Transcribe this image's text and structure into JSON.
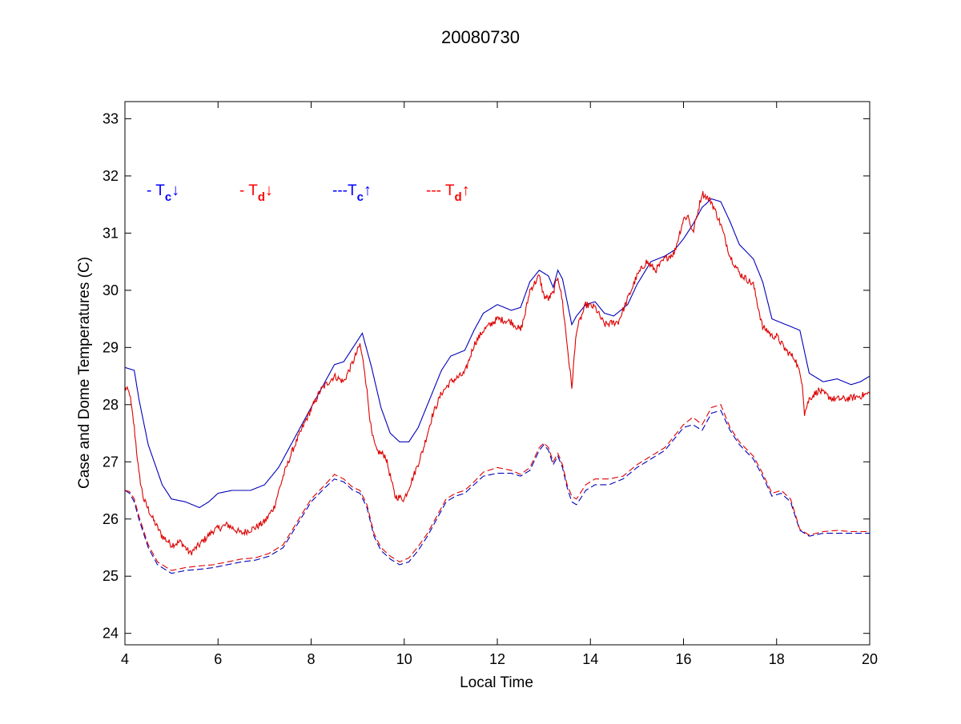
{
  "chart_data": {
    "type": "line",
    "title": "20080730",
    "xlabel": "Local Time",
    "ylabel": "Case and Dome Temperatures (C)",
    "xlim": [
      4,
      20
    ],
    "ylim": [
      23.8,
      33.3
    ],
    "xticks": [
      4,
      6,
      8,
      10,
      12,
      14,
      16,
      18,
      20
    ],
    "yticks": [
      24,
      25,
      26,
      27,
      28,
      29,
      30,
      31,
      32,
      33
    ],
    "grid": false,
    "legend": {
      "placement": "top-left",
      "entries": [
        {
          "prefix": "- ",
          "symbol": "T",
          "sub": "c",
          "arrow": "↓",
          "color": "#0000ff"
        },
        {
          "prefix": "- ",
          "symbol": "T",
          "sub": "d",
          "arrow": "↓",
          "color": "#ff0000"
        },
        {
          "prefix": "---",
          "symbol": "T",
          "sub": "c",
          "arrow": "↑",
          "color": "#0000ff"
        },
        {
          "prefix": "--- ",
          "symbol": "T",
          "sub": "d",
          "arrow": "↑",
          "color": "#ff0000"
        }
      ]
    },
    "series": [
      {
        "color": "#0000bb",
        "style": "solid",
        "noise": 0,
        "x": [
          4.0,
          4.2,
          4.3,
          4.5,
          4.8,
          5.0,
          5.3,
          5.6,
          5.8,
          6.0,
          6.3,
          6.7,
          7.0,
          7.3,
          7.6,
          8.0,
          8.3,
          8.5,
          8.7,
          8.9,
          9.1,
          9.3,
          9.5,
          9.7,
          9.9,
          10.1,
          10.3,
          10.6,
          10.8,
          11.0,
          11.3,
          11.5,
          11.7,
          12.0,
          12.3,
          12.5,
          12.7,
          12.9,
          13.1,
          13.2,
          13.3,
          13.4,
          13.5,
          13.6,
          13.7,
          13.9,
          14.1,
          14.3,
          14.5,
          14.8,
          15.0,
          15.3,
          15.6,
          15.8,
          16.0,
          16.2,
          16.4,
          16.6,
          16.8,
          17.0,
          17.2,
          17.5,
          17.7,
          17.9,
          18.2,
          18.5,
          18.7,
          19.0,
          19.3,
          19.6,
          19.8,
          20.0
        ],
        "y": [
          28.65,
          28.6,
          28.1,
          27.3,
          26.6,
          26.35,
          26.3,
          26.2,
          26.3,
          26.45,
          26.5,
          26.5,
          26.6,
          26.9,
          27.35,
          27.95,
          28.4,
          28.7,
          28.75,
          29.0,
          29.25,
          28.65,
          27.95,
          27.5,
          27.35,
          27.35,
          27.6,
          28.2,
          28.6,
          28.85,
          28.95,
          29.3,
          29.6,
          29.75,
          29.65,
          29.7,
          30.15,
          30.35,
          30.25,
          30.05,
          30.35,
          30.2,
          29.8,
          29.4,
          29.55,
          29.75,
          29.8,
          29.6,
          29.55,
          29.75,
          30.1,
          30.5,
          30.6,
          30.7,
          30.9,
          31.15,
          31.45,
          31.6,
          31.55,
          31.2,
          30.8,
          30.55,
          30.15,
          29.5,
          29.4,
          29.3,
          28.55,
          28.4,
          28.45,
          28.35,
          28.4,
          28.5
        ]
      },
      {
        "color": "#dd0000",
        "style": "solid",
        "noise": 0.06,
        "x": [
          4.0,
          4.1,
          4.2,
          4.3,
          4.4,
          4.6,
          4.8,
          5.0,
          5.2,
          5.4,
          5.6,
          5.9,
          6.2,
          6.5,
          6.8,
          7.0,
          7.2,
          7.4,
          7.6,
          7.9,
          8.2,
          8.5,
          8.7,
          8.9,
          9.05,
          9.15,
          9.3,
          9.4,
          9.6,
          9.8,
          10.0,
          10.2,
          10.4,
          10.6,
          10.8,
          11.0,
          11.3,
          11.5,
          11.7,
          12.0,
          12.3,
          12.5,
          12.6,
          12.7,
          12.9,
          13.0,
          13.1,
          13.2,
          13.3,
          13.4,
          13.5,
          13.6,
          13.7,
          13.9,
          14.1,
          14.3,
          14.6,
          14.8,
          15.0,
          15.2,
          15.4,
          15.6,
          15.8,
          16.0,
          16.1,
          16.2,
          16.3,
          16.4,
          16.6,
          16.8,
          17.0,
          17.2,
          17.5,
          17.7,
          17.8,
          17.9,
          18.0,
          18.2,
          18.4,
          18.55,
          18.6,
          18.7,
          18.9,
          19.2,
          19.5,
          19.8,
          20.0
        ],
        "y": [
          28.3,
          28.2,
          27.6,
          26.8,
          26.35,
          26.0,
          25.7,
          25.55,
          25.6,
          25.4,
          25.55,
          25.8,
          25.9,
          25.75,
          25.85,
          25.95,
          26.2,
          26.75,
          27.2,
          27.75,
          28.25,
          28.5,
          28.4,
          28.75,
          29.05,
          28.6,
          27.5,
          27.2,
          27.1,
          26.4,
          26.35,
          26.75,
          27.2,
          27.8,
          28.2,
          28.4,
          28.55,
          29.05,
          29.3,
          29.5,
          29.45,
          29.3,
          29.6,
          30.0,
          30.25,
          29.9,
          29.85,
          29.95,
          30.25,
          29.8,
          29.05,
          28.3,
          29.3,
          29.75,
          29.7,
          29.4,
          29.45,
          29.85,
          30.25,
          30.5,
          30.35,
          30.55,
          30.65,
          31.25,
          31.3,
          31.0,
          31.35,
          31.7,
          31.55,
          31.15,
          30.6,
          30.3,
          30.1,
          29.35,
          29.3,
          29.2,
          29.2,
          28.95,
          28.8,
          28.4,
          27.85,
          28.1,
          28.25,
          28.1,
          28.1,
          28.15,
          28.2
        ]
      },
      {
        "color": "#0000bb",
        "style": "dashed",
        "noise": 0,
        "x": [
          4.0,
          4.1,
          4.2,
          4.3,
          4.5,
          4.7,
          5.0,
          5.3,
          5.6,
          5.9,
          6.2,
          6.5,
          6.8,
          7.1,
          7.4,
          7.7,
          8.0,
          8.3,
          8.5,
          8.7,
          8.9,
          9.05,
          9.2,
          9.35,
          9.5,
          9.7,
          9.9,
          10.1,
          10.3,
          10.5,
          10.7,
          10.9,
          11.1,
          11.3,
          11.5,
          11.7,
          12.0,
          12.3,
          12.5,
          12.7,
          12.9,
          13.0,
          13.1,
          13.2,
          13.3,
          13.4,
          13.5,
          13.6,
          13.7,
          13.9,
          14.1,
          14.4,
          14.7,
          15.0,
          15.3,
          15.6,
          15.8,
          16.0,
          16.2,
          16.4,
          16.6,
          16.8,
          17.0,
          17.2,
          17.5,
          17.7,
          17.9,
          18.1,
          18.3,
          18.5,
          18.7,
          19.0,
          19.3,
          19.6,
          19.8,
          20.0
        ],
        "y": [
          26.5,
          26.45,
          26.3,
          26.0,
          25.5,
          25.2,
          25.05,
          25.1,
          25.12,
          25.15,
          25.2,
          25.25,
          25.28,
          25.35,
          25.5,
          25.9,
          26.3,
          26.55,
          26.7,
          26.65,
          26.5,
          26.45,
          26.2,
          25.7,
          25.45,
          25.3,
          25.2,
          25.25,
          25.45,
          25.7,
          26.0,
          26.3,
          26.4,
          26.45,
          26.6,
          26.75,
          26.8,
          26.8,
          26.75,
          26.85,
          27.2,
          27.3,
          27.2,
          26.95,
          27.1,
          26.9,
          26.55,
          26.3,
          26.25,
          26.5,
          26.6,
          26.6,
          26.7,
          26.9,
          27.05,
          27.2,
          27.4,
          27.6,
          27.65,
          27.55,
          27.85,
          27.9,
          27.55,
          27.3,
          27.05,
          26.75,
          26.4,
          26.45,
          26.3,
          25.8,
          25.7,
          25.75,
          25.75,
          25.75,
          25.75,
          25.75
        ]
      },
      {
        "color": "#dd0000",
        "style": "dashed",
        "noise": 0,
        "x": [
          4.0,
          4.1,
          4.2,
          4.3,
          4.5,
          4.7,
          5.0,
          5.3,
          5.6,
          5.9,
          6.2,
          6.5,
          6.8,
          7.1,
          7.4,
          7.7,
          8.0,
          8.3,
          8.5,
          8.7,
          8.9,
          9.05,
          9.2,
          9.35,
          9.5,
          9.7,
          9.9,
          10.1,
          10.3,
          10.5,
          10.7,
          10.9,
          11.1,
          11.3,
          11.5,
          11.7,
          12.0,
          12.3,
          12.5,
          12.7,
          12.9,
          13.0,
          13.1,
          13.2,
          13.3,
          13.4,
          13.5,
          13.6,
          13.7,
          13.9,
          14.1,
          14.4,
          14.7,
          15.0,
          15.3,
          15.6,
          15.8,
          16.0,
          16.2,
          16.4,
          16.6,
          16.8,
          17.0,
          17.2,
          17.5,
          17.7,
          17.9,
          18.1,
          18.3,
          18.5,
          18.7,
          19.0,
          19.3,
          19.6,
          19.8,
          20.0
        ],
        "y": [
          26.5,
          26.48,
          26.35,
          26.05,
          25.55,
          25.25,
          25.1,
          25.15,
          25.18,
          25.2,
          25.25,
          25.3,
          25.32,
          25.4,
          25.55,
          25.95,
          26.35,
          26.6,
          26.78,
          26.7,
          26.55,
          26.5,
          26.25,
          25.75,
          25.5,
          25.35,
          25.25,
          25.32,
          25.52,
          25.75,
          26.05,
          26.35,
          26.45,
          26.5,
          26.65,
          26.82,
          26.9,
          26.85,
          26.78,
          26.9,
          27.25,
          27.33,
          27.25,
          27.0,
          27.15,
          26.95,
          26.6,
          26.4,
          26.35,
          26.6,
          26.7,
          26.7,
          26.75,
          26.95,
          27.1,
          27.25,
          27.45,
          27.65,
          27.78,
          27.65,
          27.95,
          28.0,
          27.6,
          27.35,
          27.1,
          26.8,
          26.45,
          26.5,
          26.35,
          25.82,
          25.72,
          25.78,
          25.8,
          25.78,
          25.78,
          25.78
        ]
      }
    ]
  }
}
